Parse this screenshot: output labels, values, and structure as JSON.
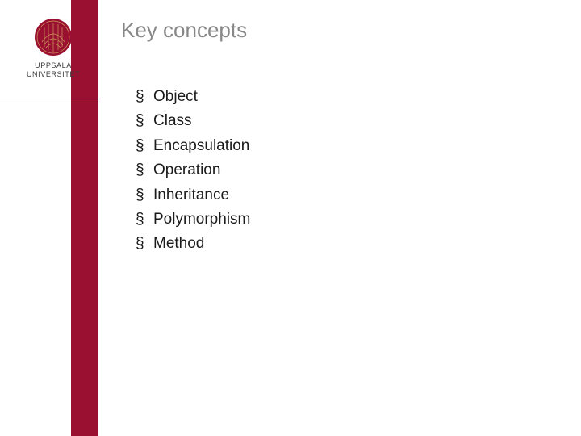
{
  "colors": {
    "brand_red": "#9a1030",
    "title_gray": "#888888",
    "text_black": "#1a1a1a",
    "logo_text": "#3b3b3b",
    "divider": "#d0d0d0",
    "background": "#ffffff"
  },
  "logo": {
    "line1": "UPPSALA",
    "line2": "UNIVERSITET"
  },
  "title": "Key concepts",
  "concepts": [
    "Object",
    "Class",
    "Encapsulation",
    "Operation",
    "Inheritance",
    "Polymorphism",
    "Method"
  ]
}
